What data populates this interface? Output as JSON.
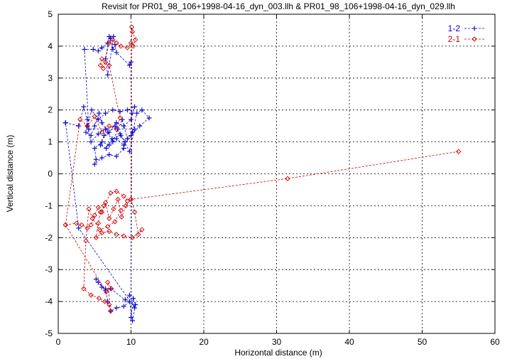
{
  "chart_data": {
    "type": "scatter",
    "title": "Revisit for PR01_98_106+1998-04-16_dyn_003.llh & PR01_98_106+1998-04-16_dyn_029.llh",
    "xlabel": "Horizontal distance (m)",
    "ylabel": "Vertical distance (m)",
    "xlim": [
      0,
      60
    ],
    "ylim": [
      -5,
      5
    ],
    "x_ticks": [
      "0",
      "10",
      "20",
      "30",
      "40",
      "50",
      "60"
    ],
    "y_ticks": [
      "-5",
      "-4",
      "-3",
      "-2",
      "-1",
      "0",
      "1",
      "2",
      "3",
      "4",
      "5"
    ],
    "grid": true,
    "legend_position": "top-right",
    "series": [
      {
        "name": "1-2",
        "color": "#0000cc",
        "marker": "plus",
        "line": "dashed",
        "points": [
          [
            1.0,
            1.6
          ],
          [
            2.8,
            1.5
          ],
          [
            3.5,
            2.1
          ],
          [
            4.0,
            1.7
          ],
          [
            3.8,
            1.3
          ],
          [
            4.5,
            1.2
          ],
          [
            5.0,
            1.5
          ],
          [
            5.6,
            1.9
          ],
          [
            6.0,
            1.6
          ],
          [
            6.8,
            1.3
          ],
          [
            7.5,
            1.0
          ],
          [
            8.2,
            1.4
          ],
          [
            8.8,
            1.7
          ],
          [
            9.5,
            1.1
          ],
          [
            10.2,
            1.3
          ],
          [
            10.8,
            1.9
          ],
          [
            11.5,
            2.0
          ],
          [
            12.5,
            1.75
          ],
          [
            11.2,
            1.5
          ],
          [
            10.0,
            1.2
          ],
          [
            9.0,
            0.9
          ],
          [
            8.0,
            1.1
          ],
          [
            7.0,
            0.9
          ],
          [
            6.0,
            1.0
          ],
          [
            5.0,
            0.8
          ],
          [
            5.2,
            0.45
          ],
          [
            5.0,
            0.3
          ],
          [
            6.0,
            0.5
          ],
          [
            7.0,
            0.6
          ],
          [
            8.0,
            0.55
          ],
          [
            9.0,
            0.8
          ],
          [
            9.2,
            1.0
          ],
          [
            8.5,
            1.25
          ],
          [
            7.8,
            1.5
          ],
          [
            6.5,
            1.4
          ],
          [
            5.5,
            1.25
          ],
          [
            4.5,
            1.0
          ],
          [
            4.0,
            1.5
          ],
          [
            4.6,
            2.0
          ],
          [
            5.5,
            1.7
          ],
          [
            6.5,
            1.9
          ],
          [
            7.5,
            2.0
          ],
          [
            8.5,
            1.95
          ],
          [
            9.5,
            2.0
          ],
          [
            10.5,
            2.1
          ],
          [
            10.0,
            1.7
          ],
          [
            9.0,
            1.5
          ],
          [
            8.0,
            1.6
          ],
          [
            7.0,
            1.3
          ],
          [
            6.3,
            1.2
          ],
          [
            5.8,
            0.9
          ],
          [
            6.6,
            0.8
          ],
          [
            7.4,
            1.1
          ],
          [
            8.6,
            1.2
          ],
          [
            9.8,
            0.7
          ],
          [
            10.5,
            1.4
          ],
          [
            4.2,
            1.4
          ],
          [
            3.6,
            3.9
          ],
          [
            4.8,
            3.9
          ],
          [
            5.5,
            3.85
          ],
          [
            6.0,
            3.95
          ],
          [
            6.8,
            4.1
          ],
          [
            7.2,
            4.25
          ],
          [
            7.6,
            4.3
          ],
          [
            6.8,
            3.1
          ],
          [
            6.5,
            3.6
          ],
          [
            7.0,
            4.3
          ],
          [
            7.5,
            3.9
          ],
          [
            7.8,
            4.05
          ],
          [
            8.0,
            3.8
          ],
          [
            9.8,
            3.4
          ],
          [
            10.0,
            3.5
          ],
          [
            10.1,
            1.9
          ],
          [
            10.0,
            -4.5
          ],
          [
            10.3,
            -3.9
          ],
          [
            10.6,
            -4.1
          ],
          [
            10.2,
            -4.6
          ],
          [
            9.8,
            -4.0
          ],
          [
            9.0,
            -4.15
          ],
          [
            8.0,
            -4.2
          ],
          [
            7.2,
            -4.3
          ],
          [
            6.8,
            -4.0
          ],
          [
            6.5,
            -3.6
          ],
          [
            6.0,
            -3.55
          ],
          [
            5.5,
            -3.4
          ],
          [
            5.2,
            -3.3
          ],
          [
            6.5,
            -3.65
          ],
          [
            7.2,
            -3.6
          ],
          [
            9.2,
            -3.95
          ],
          [
            9.8,
            -3.8
          ],
          [
            10.5,
            -4.2
          ],
          [
            2.8,
            -1.7
          ],
          [
            1.0,
            1.6
          ]
        ]
      },
      {
        "name": "2-1",
        "color": "#cc0000",
        "marker": "diamond",
        "line": "dashed",
        "points": [
          [
            1.0,
            -1.6
          ],
          [
            2.5,
            -1.55
          ],
          [
            3.2,
            -1.6
          ],
          [
            4.0,
            -1.7
          ],
          [
            4.5,
            -1.6
          ],
          [
            5.0,
            -1.3
          ],
          [
            5.5,
            -1.05
          ],
          [
            6.0,
            -1.2
          ],
          [
            6.5,
            -0.9
          ],
          [
            7.0,
            -1.4
          ],
          [
            7.6,
            -1.1
          ],
          [
            8.2,
            -0.8
          ],
          [
            8.7,
            -1.35
          ],
          [
            9.3,
            -1.0
          ],
          [
            10.0,
            -0.8
          ],
          [
            10.5,
            -1.2
          ],
          [
            11.0,
            -1.9
          ],
          [
            11.5,
            -1.75
          ],
          [
            10.2,
            -2.0
          ],
          [
            9.0,
            -1.95
          ],
          [
            8.0,
            -1.9
          ],
          [
            7.0,
            -1.8
          ],
          [
            6.0,
            -1.85
          ],
          [
            5.2,
            -2.0
          ],
          [
            5.5,
            -1.55
          ],
          [
            5.8,
            -1.2
          ],
          [
            6.3,
            -1.0
          ],
          [
            7.2,
            -0.6
          ],
          [
            8.0,
            -0.55
          ],
          [
            9.0,
            -0.7
          ],
          [
            9.5,
            -0.85
          ],
          [
            8.6,
            -1.15
          ],
          [
            7.8,
            -1.5
          ],
          [
            6.8,
            -1.65
          ],
          [
            5.7,
            -1.75
          ],
          [
            4.7,
            -1.4
          ],
          [
            4.2,
            -1.1
          ],
          [
            3.8,
            -2.1
          ],
          [
            3.5,
            -3.6
          ],
          [
            4.5,
            -3.8
          ],
          [
            5.6,
            -3.9
          ],
          [
            6.4,
            -4.0
          ],
          [
            7.0,
            -4.1
          ],
          [
            7.2,
            -4.3
          ],
          [
            6.8,
            -3.4
          ],
          [
            7.3,
            -3.6
          ],
          [
            6.6,
            -3.7
          ],
          [
            1.0,
            -1.6
          ],
          [
            3.0,
            1.7
          ],
          [
            4.0,
            1.5
          ],
          [
            5.0,
            1.8
          ],
          [
            6.0,
            1.3
          ],
          [
            7.0,
            1.5
          ],
          [
            8.0,
            1.4
          ],
          [
            8.5,
            1.75
          ],
          [
            7.0,
            3.4
          ],
          [
            6.5,
            3.5
          ],
          [
            6.0,
            3.6
          ],
          [
            5.8,
            3.4
          ],
          [
            6.2,
            3.3
          ],
          [
            7.0,
            4.1
          ],
          [
            7.5,
            4.2
          ],
          [
            8.0,
            4.1
          ],
          [
            8.6,
            4.0
          ],
          [
            9.5,
            3.95
          ],
          [
            10.0,
            4.1
          ],
          [
            10.3,
            4.0
          ],
          [
            10.6,
            4.2
          ],
          [
            10.2,
            4.45
          ],
          [
            10.1,
            4.6
          ],
          [
            10.0,
            -0.8
          ],
          [
            31.5,
            -0.15
          ],
          [
            55.0,
            0.7
          ]
        ]
      }
    ]
  }
}
